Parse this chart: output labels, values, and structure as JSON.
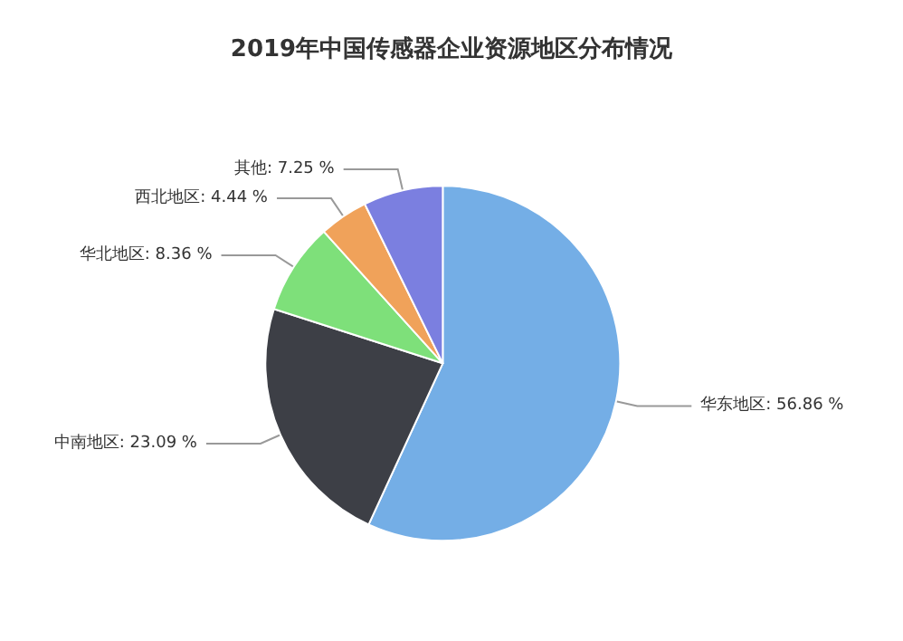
{
  "chart_data": {
    "type": "pie",
    "title": "2019年中国传感器企业资源地区分布情况",
    "categories": [
      "华东地区",
      "中南地区",
      "华北地区",
      "西北地区",
      "其他"
    ],
    "values": [
      56.86,
      23.09,
      8.36,
      4.44,
      7.25
    ],
    "value_labels": [
      "56.86 %",
      "23.09 %",
      "8.36 %",
      "4.44 %",
      "7.25 %"
    ],
    "colors": [
      "#74aee6",
      "#3d3f46",
      "#7ee07a",
      "#f0a25a",
      "#7b7fe0"
    ],
    "legend": false
  }
}
